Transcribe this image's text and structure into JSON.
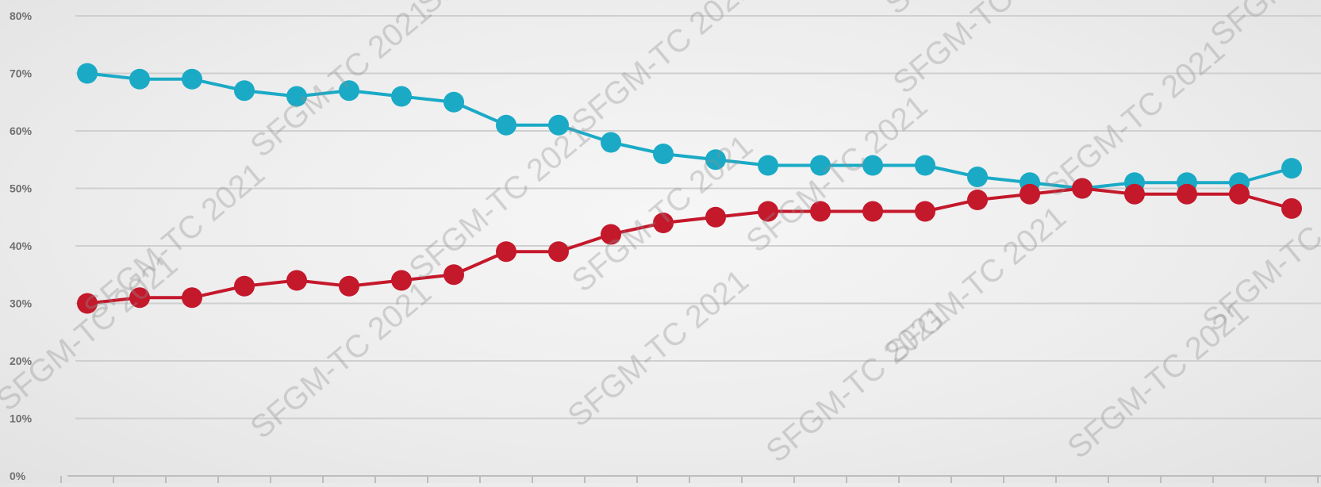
{
  "chart_data": {
    "type": "line",
    "title": "",
    "xlabel": "",
    "ylabel": "",
    "ylim": [
      0,
      80
    ],
    "y_ticks": [
      "0%",
      "10%",
      "20%",
      "30%",
      "40%",
      "50%",
      "60%",
      "70%",
      "80%"
    ],
    "grid": true,
    "legend": "none",
    "series": [
      {
        "color": "#1aaac6",
        "values": [
          70,
          69,
          69,
          67,
          66,
          67,
          66,
          65,
          61,
          61,
          58,
          56,
          55,
          54,
          54,
          54,
          54,
          52,
          51,
          50,
          51,
          51,
          51,
          53.5
        ]
      },
      {
        "color": "#c4182b",
        "values": [
          30,
          31,
          31,
          33,
          34,
          33,
          34,
          35,
          39,
          39,
          42,
          44,
          45,
          46,
          46,
          46,
          46,
          48,
          49,
          50,
          49,
          49,
          49,
          46.5
        ]
      }
    ]
  },
  "watermark": {
    "text": "SFGM-TC 2021"
  }
}
